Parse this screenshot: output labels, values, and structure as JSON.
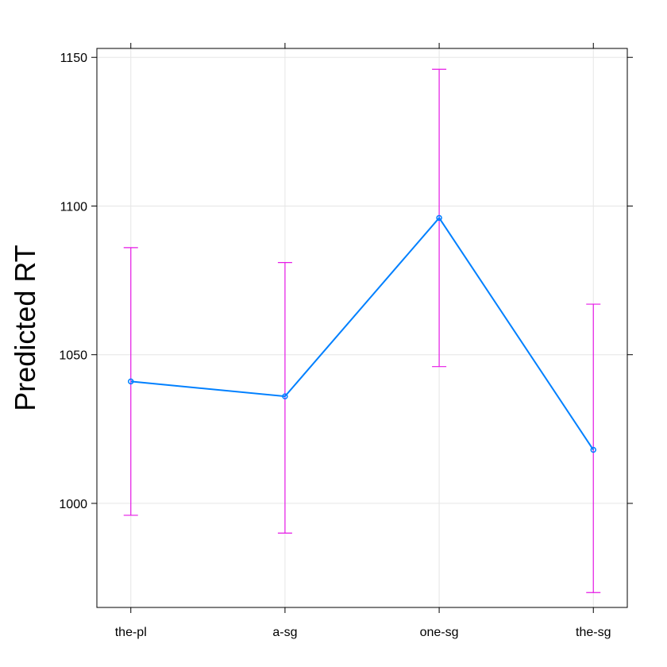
{
  "chart_data": {
    "type": "line",
    "title": "",
    "xlabel": "",
    "ylabel": "Predicted RT",
    "categories": [
      "the-pl",
      "a-sg",
      "one-sg",
      "the-sg"
    ],
    "series": [
      {
        "values": [
          1041,
          1036,
          1096,
          1018
        ],
        "lower": [
          996,
          990,
          1046,
          970
        ],
        "upper": [
          1086,
          1081,
          1146,
          1067
        ]
      }
    ],
    "ylim": [
      965,
      1153
    ],
    "yticks": [
      1000,
      1050,
      1100,
      1150
    ],
    "grid": true,
    "colors": {
      "line": "#0080ff",
      "errorbar": "#e619e6",
      "frame": "#000000",
      "grid": "#e6e6e6"
    }
  }
}
